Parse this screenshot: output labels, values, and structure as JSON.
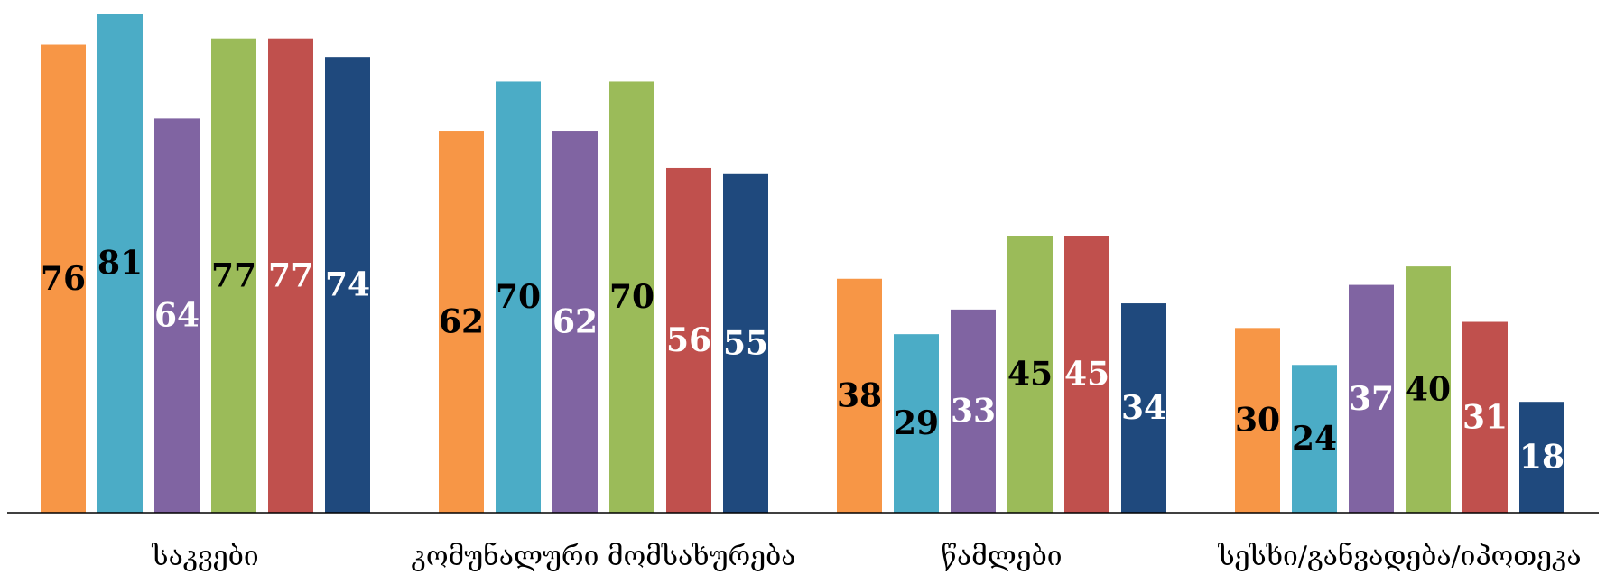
{
  "chart_data": {
    "type": "bar",
    "categories": [
      "საკვები",
      "კომუნალური მომსახურება",
      "წამლები",
      "სესხი/განვადება/იპოთეკა"
    ],
    "series": [
      {
        "values": [
          76,
          62,
          38,
          30
        ],
        "color": "#F79646",
        "label_color": "#000000"
      },
      {
        "values": [
          81,
          70,
          29,
          24
        ],
        "color": "#4BACC6",
        "label_color": "#000000"
      },
      {
        "values": [
          64,
          62,
          33,
          37
        ],
        "color": "#8064A2",
        "label_color": "#FFFFFF"
      },
      {
        "values": [
          77,
          70,
          45,
          40
        ],
        "color": "#9BBB59",
        "label_color": "#000000"
      },
      {
        "values": [
          77,
          56,
          45,
          31
        ],
        "color": "#C0504D",
        "label_color": "#FFFFFF"
      },
      {
        "values": [
          74,
          55,
          34,
          18
        ],
        "color": "#1F497D",
        "label_color": "#FFFFFF"
      }
    ],
    "title": "",
    "xlabel": "",
    "ylabel": "",
    "ylim": [
      0,
      81.5
    ],
    "grid": false,
    "legend": "none",
    "data_labels": "center"
  }
}
